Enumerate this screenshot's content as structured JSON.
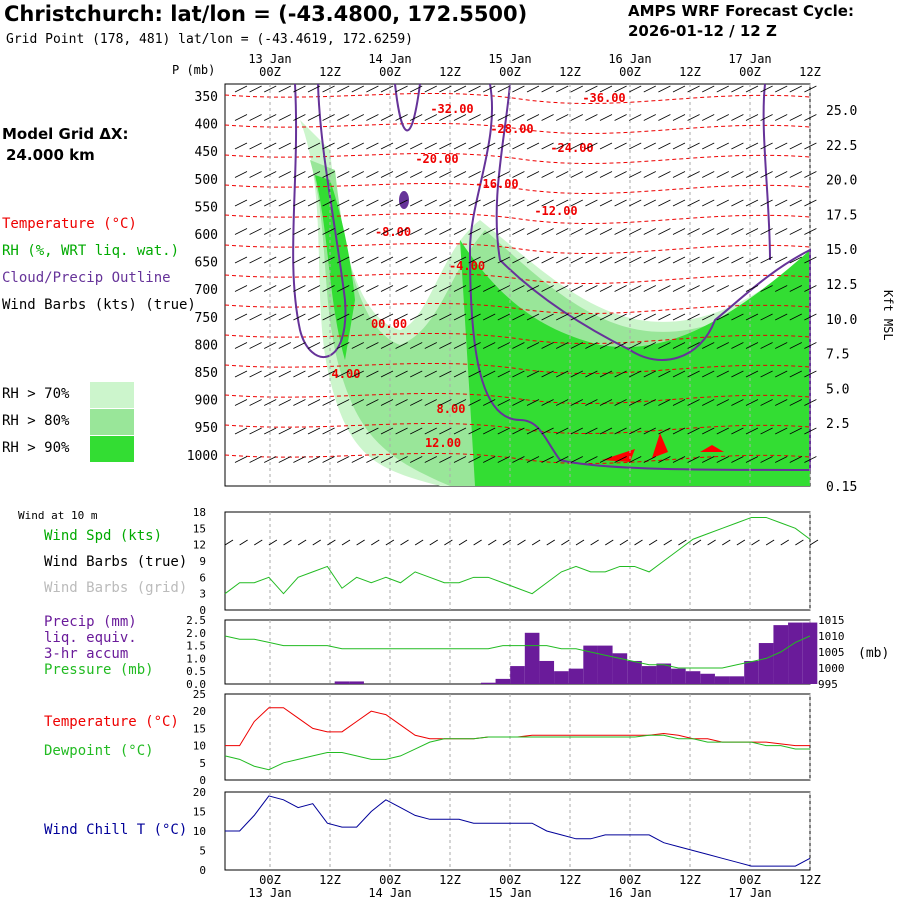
{
  "header": {
    "title": "Christchurch:  lat/lon = (-43.4800, 172.5500)",
    "subtitle": "Grid Point (178, 481) lat/lon = (-43.4619, 172.6259)",
    "cycle_title": "AMPS WRF Forecast Cycle:",
    "cycle_value": "2026-01-12 / 12  Z",
    "grid_label": "Model Grid ΔX:",
    "grid_value": "24.000 km"
  },
  "legend": {
    "temperature": "Temperature (°C)",
    "rh": "RH (%, WRT liq. wat.)",
    "cloud": "Cloud/Precip Outline",
    "wind": "Wind Barbs (kts) (true)",
    "rh_levels": [
      "RH > 70%",
      "RH > 80%",
      "RH > 90%"
    ],
    "rh_colors": [
      "#ccf5cc",
      "#99e699",
      "#33dd33"
    ]
  },
  "colors": {
    "temperature": "#ee0000",
    "rh": "#00aa00",
    "cloud": "#663399",
    "precip": "#6a1b9a",
    "pressure": "#22bb22",
    "windchill": "#000099",
    "grid": "#aaaaaa"
  },
  "time_axis": {
    "top_labels": [
      "00Z",
      "12Z",
      "00Z",
      "12Z",
      "00Z",
      "12Z",
      "00Z",
      "12Z",
      "00Z",
      "12Z"
    ],
    "date_labels": [
      "13 Jan",
      "14 Jan",
      "15 Jan",
      "16 Jan",
      "17 Jan"
    ]
  },
  "chart_data": [
    {
      "type": "heatmap",
      "name": "Vertical cross-section",
      "ylabel": "P (mb)",
      "y2label": "Kft MSL",
      "pressure_ticks": [
        "350",
        "400",
        "450",
        "500",
        "550",
        "600",
        "650",
        "700",
        "750",
        "800",
        "850",
        "900",
        "950",
        "1000"
      ],
      "height_ticks": [
        "25.0",
        "22.5",
        "20.0",
        "17.5",
        "15.0",
        "12.5",
        "10.0",
        "7.5",
        "5.0",
        "2.5",
        "0.15"
      ],
      "isotherm_labels": [
        "-36.00",
        "-32.00",
        "-28.00",
        "-24.00",
        "-20.00",
        "-16.00",
        "-12.00",
        "-8.00",
        "-4.00",
        "00.00",
        "4.00",
        "8.00",
        "12.00"
      ]
    },
    {
      "type": "line",
      "title": "Wind at 10 m",
      "labels": [
        "Wind Spd (kts)",
        "Wind Barbs (true)",
        "Wind Barbs (grid)"
      ],
      "yticks": [
        "0",
        "3",
        "6",
        "9",
        "12",
        "15",
        "18"
      ],
      "ylim": [
        0,
        18
      ],
      "x": [
        0,
        1,
        2,
        3,
        4,
        5,
        6,
        7,
        8,
        9,
        10,
        11,
        12,
        13,
        14,
        15,
        16,
        17,
        18,
        19,
        20,
        21,
        22,
        23,
        24,
        25,
        26,
        27,
        28,
        29,
        30,
        31,
        32,
        33,
        34,
        35,
        36,
        37,
        38,
        39,
        40
      ],
      "values": [
        3,
        5,
        5,
        6,
        3,
        6,
        7,
        8,
        4,
        6,
        5,
        6,
        5,
        7,
        6,
        5,
        5,
        6,
        6,
        5,
        4,
        3,
        5,
        7,
        8,
        7,
        7,
        8,
        8,
        7,
        9,
        11,
        13,
        14,
        15,
        16,
        17,
        17,
        16,
        15,
        13
      ]
    },
    {
      "type": "bar",
      "labels": [
        "Precip (mm)",
        "liq. equiv.",
        "3-hr accum",
        "Pressure (mb)"
      ],
      "yticks": [
        "0.0",
        "0.5",
        "1.0",
        "1.5",
        "2.0",
        "2.5"
      ],
      "y2ticks": [
        "995",
        "1000",
        "1005",
        "1010",
        "1015"
      ],
      "unit_label": "(mb)",
      "ylim": [
        0,
        2.5
      ],
      "y2lim": [
        995,
        1015
      ],
      "x": [
        0,
        1,
        2,
        3,
        4,
        5,
        6,
        7,
        8,
        9,
        10,
        11,
        12,
        13,
        14,
        15,
        16,
        17,
        18,
        19,
        20,
        21,
        22,
        23,
        24,
        25,
        26,
        27,
        28,
        29,
        30,
        31,
        32,
        33,
        34,
        35,
        36,
        37,
        38,
        39,
        40
      ],
      "precip": [
        0,
        0,
        0,
        0,
        0,
        0,
        0,
        0,
        0.1,
        0.1,
        0,
        0,
        0,
        0,
        0,
        0,
        0,
        0,
        0.05,
        0.2,
        0.7,
        2.0,
        0.9,
        0.5,
        0.6,
        1.5,
        1.5,
        1.2,
        0.9,
        0.7,
        0.8,
        0.6,
        0.5,
        0.4,
        0.3,
        0.3,
        0.9,
        1.6,
        2.3,
        2.4,
        2.4
      ],
      "pressure": [
        1010,
        1009,
        1009,
        1008,
        1007,
        1007,
        1007,
        1007,
        1006,
        1006,
        1006,
        1006,
        1006,
        1006,
        1006,
        1006,
        1006,
        1006,
        1006,
        1007,
        1007,
        1007,
        1007,
        1006,
        1006,
        1005,
        1004,
        1003,
        1002,
        1001,
        1001,
        1000,
        1000,
        1000,
        1000,
        1001,
        1002,
        1003,
        1005,
        1008,
        1010
      ]
    },
    {
      "type": "line",
      "labels": [
        "Temperature (°C)",
        "Dewpoint (°C)"
      ],
      "yticks": [
        "0",
        "5",
        "10",
        "15",
        "20",
        "25"
      ],
      "ylim": [
        0,
        25
      ],
      "x": [
        0,
        1,
        2,
        3,
        4,
        5,
        6,
        7,
        8,
        9,
        10,
        11,
        12,
        13,
        14,
        15,
        16,
        17,
        18,
        19,
        20,
        21,
        22,
        23,
        24,
        25,
        26,
        27,
        28,
        29,
        30,
        31,
        32,
        33,
        34,
        35,
        36,
        37,
        38,
        39,
        40
      ],
      "series": [
        {
          "name": "Temperature (°C)",
          "values": [
            10,
            10,
            17,
            21,
            21,
            18,
            15,
            14,
            14,
            17,
            20,
            19,
            16,
            13,
            12,
            12,
            12,
            12,
            12.5,
            12.5,
            12.5,
            13,
            13,
            13,
            13,
            13,
            13,
            13,
            13,
            13,
            13.5,
            13,
            12,
            12,
            11,
            11,
            11,
            11,
            10.5,
            10,
            10
          ]
        },
        {
          "name": "Dewpoint (°C)",
          "values": [
            7,
            6,
            4,
            3,
            5,
            6,
            7,
            8,
            8,
            7,
            6,
            6,
            7,
            9,
            11,
            12,
            12,
            12,
            12.5,
            12.5,
            12.5,
            12.5,
            12.5,
            12.5,
            12.5,
            12.5,
            12.5,
            12.5,
            12.5,
            13,
            13,
            12,
            12,
            11,
            11,
            11,
            11,
            10,
            10,
            9,
            9
          ]
        }
      ]
    },
    {
      "type": "line",
      "labels": [
        "Wind Chill T (°C)"
      ],
      "yticks": [
        "0",
        "5",
        "10",
        "15",
        "20"
      ],
      "ylim": [
        0,
        20
      ],
      "x": [
        0,
        1,
        2,
        3,
        4,
        5,
        6,
        7,
        8,
        9,
        10,
        11,
        12,
        13,
        14,
        15,
        16,
        17,
        18,
        19,
        20,
        21,
        22,
        23,
        24,
        25,
        26,
        27,
        28,
        29,
        30,
        31,
        32,
        33,
        34,
        35,
        36,
        37,
        38,
        39,
        40
      ],
      "values": [
        10,
        10,
        14,
        19,
        18,
        16,
        17,
        12,
        11,
        11,
        15,
        18,
        16,
        14,
        13,
        13,
        13,
        12,
        12,
        12,
        12,
        12,
        10,
        9,
        8,
        8,
        9,
        9,
        9,
        9,
        7,
        6,
        5,
        4,
        3,
        2,
        1,
        1,
        1,
        1,
        3
      ]
    }
  ]
}
